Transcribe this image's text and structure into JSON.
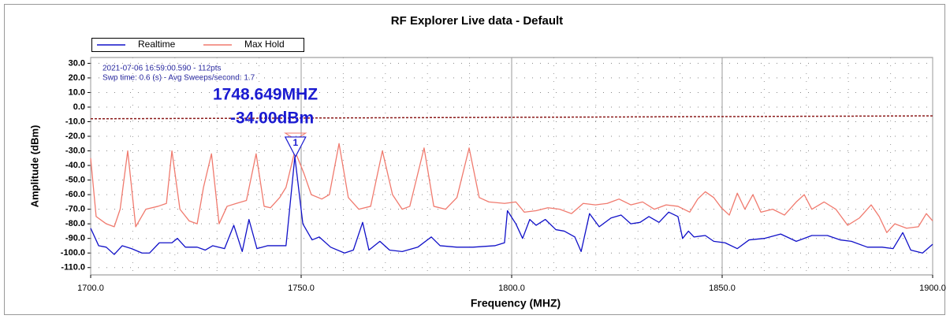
{
  "chart_data": {
    "type": "line",
    "title": "RF Explorer Live data - Default",
    "xlabel": "Frequency (MHZ)",
    "ylabel": "Amplitude (dBm)",
    "xlim": [
      1700,
      1900
    ],
    "ylim": [
      -115,
      34
    ],
    "xticks": [
      {
        "value": 1700,
        "label": "1700.0"
      },
      {
        "value": 1750,
        "label": "1750.0"
      },
      {
        "value": 1800,
        "label": "1800.0"
      },
      {
        "value": 1850,
        "label": "1850.0"
      },
      {
        "value": 1900,
        "label": "1900.0"
      }
    ],
    "yticks": [
      {
        "value": 30,
        "label": "30.0"
      },
      {
        "value": 20,
        "label": "20.0"
      },
      {
        "value": 10,
        "label": "10.0"
      },
      {
        "value": 0,
        "label": "0.0"
      },
      {
        "value": -10,
        "label": "-10.0"
      },
      {
        "value": -20,
        "label": "-20.0"
      },
      {
        "value": -30,
        "label": "-30.0"
      },
      {
        "value": -40,
        "label": "-40.0"
      },
      {
        "value": -50,
        "label": "-50.0"
      },
      {
        "value": -60,
        "label": "-60.0"
      },
      {
        "value": -70,
        "label": "-70.0"
      },
      {
        "value": -80,
        "label": "-80.0"
      },
      {
        "value": -90,
        "label": "-90.0"
      },
      {
        "value": -100,
        "label": "-100.0"
      },
      {
        "value": -110,
        "label": "-110.0"
      }
    ],
    "grid": true,
    "legend": "top-left",
    "annotations": [
      "2021-07-06 16:59:00.590 - 112pts",
      "Swp time: 0.6 (s) - Avg Sweeps/second: 1.7",
      "1748.649MHZ",
      "-34.00dBm"
    ],
    "marker": {
      "label": "1",
      "x": 1748.649,
      "value": -34,
      "color": "#1a1ad0"
    },
    "reference_line": {
      "x": [
        1700,
        1900
      ],
      "values": [
        -8,
        -6
      ],
      "color": "#8b1a1a"
    },
    "series": [
      {
        "name": "Realtime",
        "color": "#1010c8",
        "x": [
          1700,
          1701.9,
          1703.7,
          1705.6,
          1707.5,
          1709.7,
          1712.2,
          1714,
          1716.3,
          1719.3,
          1720.6,
          1722.5,
          1725.3,
          1727.2,
          1729,
          1731.8,
          1734,
          1736,
          1737.6,
          1739.5,
          1742,
          1746.4,
          1748.5,
          1750.4,
          1752.6,
          1754.3,
          1757,
          1760.3,
          1762.4,
          1764.6,
          1766.1,
          1768.7,
          1771,
          1774,
          1777.7,
          1780.9,
          1783,
          1787,
          1790.8,
          1796,
          1798.3,
          1799,
          1801,
          1802.6,
          1804.3,
          1805.8,
          1808,
          1810.5,
          1812.5,
          1815,
          1816.5,
          1818.5,
          1820.8,
          1823.6,
          1826,
          1828.3,
          1830.5,
          1832.6,
          1835,
          1837.3,
          1839.5,
          1840.6,
          1842,
          1843.3,
          1846,
          1848,
          1850.7,
          1853.6,
          1856.4,
          1860,
          1863.9,
          1867.6,
          1871.3,
          1875,
          1878,
          1880.7,
          1884.5,
          1888,
          1890.6,
          1892.9,
          1894.8,
          1897.6,
          1900
        ],
        "values": [
          -83,
          -95,
          -96,
          -101,
          -95,
          -97,
          -100,
          -100,
          -93,
          -93,
          -90,
          -96,
          -96,
          -98,
          -95,
          -97,
          -81,
          -99,
          -77,
          -97,
          -95,
          -95,
          -34,
          -80,
          -91,
          -89,
          -96,
          -100,
          -98,
          -79,
          -98,
          -92,
          -98,
          -99,
          -96,
          -89,
          -95,
          -96,
          -96,
          -95,
          -93,
          -71,
          -80,
          -90,
          -77,
          -81,
          -77,
          -84,
          -85,
          -89,
          -99,
          -73,
          -82,
          -76,
          -74,
          -80,
          -79,
          -75,
          -79,
          -72,
          -75,
          -90,
          -85,
          -89,
          -88,
          -92,
          -93,
          -97,
          -91,
          -90,
          -87,
          -92,
          -88,
          -88,
          -91,
          -92,
          -96,
          -96,
          -97,
          -86,
          -98,
          -100,
          -94
        ]
      },
      {
        "name": "Max Hold",
        "color": "#f07a6e",
        "x": [
          1700,
          1701.3,
          1703.7,
          1705.6,
          1707,
          1708.8,
          1710.7,
          1713.1,
          1716,
          1718,
          1719.3,
          1721.2,
          1723.4,
          1725.3,
          1726.8,
          1728.7,
          1730.5,
          1732.4,
          1734.6,
          1737,
          1739.3,
          1741.2,
          1742.7,
          1744.9,
          1746.4,
          1748.5,
          1750.6,
          1752.4,
          1754.9,
          1756.7,
          1759,
          1761.2,
          1763.7,
          1766.5,
          1769.3,
          1771.7,
          1774,
          1775.8,
          1779.2,
          1781.5,
          1784.3,
          1787,
          1789.9,
          1792.3,
          1794.6,
          1798.3,
          1801,
          1803,
          1805.8,
          1808.6,
          1811.4,
          1814.2,
          1817,
          1819.9,
          1822.7,
          1825.5,
          1828.3,
          1831.1,
          1833.9,
          1836.7,
          1839.5,
          1842.3,
          1844.2,
          1846,
          1848,
          1849.8,
          1851.7,
          1853.6,
          1855.4,
          1857.3,
          1859.2,
          1862,
          1864.8,
          1867.6,
          1869.5,
          1871.3,
          1874.2,
          1877,
          1879.8,
          1882.6,
          1885.4,
          1887.3,
          1889.1,
          1891,
          1893.8,
          1896.6,
          1898.5,
          1900
        ],
        "values": [
          -35,
          -75,
          -80,
          -82,
          -70,
          -30,
          -82,
          -70,
          -68,
          -66,
          -30,
          -70,
          -78,
          -80,
          -55,
          -32,
          -80,
          -68,
          -66,
          -64,
          -32,
          -68,
          -69,
          -62,
          -55,
          -30,
          -45,
          -60,
          -63,
          -60,
          -25,
          -62,
          -70,
          -68,
          -30,
          -60,
          -70,
          -68,
          -28,
          -68,
          -70,
          -62,
          -28,
          -62,
          -65,
          -66,
          -65,
          -72,
          -71,
          -69,
          -70,
          -73,
          -66,
          -67,
          -66,
          -63,
          -67,
          -65,
          -70,
          -67,
          -68,
          -72,
          -63,
          -58,
          -62,
          -69,
          -74,
          -59,
          -70,
          -60,
          -72,
          -70,
          -74,
          -65,
          -60,
          -70,
          -65,
          -70,
          -81,
          -76,
          -67,
          -75,
          -86,
          -80,
          -83,
          -82,
          -73,
          -78
        ]
      }
    ]
  }
}
